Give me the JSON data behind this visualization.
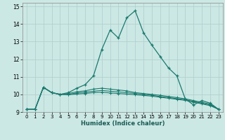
{
  "xlabel": "Humidex (Indice chaleur)",
  "ylabel": "",
  "background_color": "#cce8e4",
  "grid_color": "#b0cccc",
  "line_color": "#1a7a6e",
  "xlim": [
    -0.5,
    23.5
  ],
  "ylim": [
    9,
    15.2
  ],
  "xticks": [
    0,
    1,
    2,
    3,
    4,
    5,
    6,
    7,
    8,
    9,
    10,
    11,
    12,
    13,
    14,
    15,
    16,
    17,
    18,
    19,
    20,
    21,
    22,
    23
  ],
  "yticks": [
    9,
    10,
    11,
    12,
    13,
    14,
    15
  ],
  "curve1_x": [
    0,
    1,
    2,
    3,
    4,
    5,
    6,
    7,
    8,
    9,
    10,
    11,
    12,
    13,
    14,
    15,
    16,
    17,
    18,
    19,
    20,
    21,
    22,
    23
  ],
  "curve1_y": [
    9.15,
    9.15,
    10.4,
    10.1,
    10.0,
    10.1,
    10.35,
    10.55,
    11.05,
    12.55,
    13.65,
    13.2,
    14.35,
    14.75,
    13.5,
    12.8,
    12.15,
    11.5,
    11.05,
    9.75,
    9.4,
    9.65,
    9.5,
    9.15
  ],
  "curve2_x": [
    0,
    1,
    2,
    3,
    4,
    5,
    6,
    7,
    8,
    9,
    10,
    11,
    12,
    13,
    14,
    15,
    16,
    17,
    18,
    19,
    20,
    21,
    22,
    23
  ],
  "curve2_y": [
    9.15,
    9.15,
    10.4,
    10.1,
    10.0,
    10.05,
    10.15,
    10.2,
    10.3,
    10.35,
    10.3,
    10.25,
    10.2,
    10.1,
    10.05,
    10.0,
    9.95,
    9.88,
    9.82,
    9.75,
    9.65,
    9.55,
    9.45,
    9.15
  ],
  "curve3_x": [
    0,
    1,
    2,
    3,
    4,
    5,
    6,
    7,
    8,
    9,
    10,
    11,
    12,
    13,
    14,
    15,
    16,
    17,
    18,
    19,
    20,
    21,
    22,
    23
  ],
  "curve3_y": [
    9.15,
    9.15,
    10.4,
    10.1,
    10.0,
    10.0,
    10.08,
    10.12,
    10.18,
    10.22,
    10.18,
    10.14,
    10.1,
    10.05,
    10.0,
    9.95,
    9.88,
    9.82,
    9.76,
    9.7,
    9.6,
    9.5,
    9.4,
    9.15
  ],
  "curve4_x": [
    0,
    1,
    2,
    3,
    4,
    5,
    6,
    7,
    8,
    9,
    10,
    11,
    12,
    13,
    14,
    15,
    16,
    17,
    18,
    19,
    20,
    21,
    22,
    23
  ],
  "curve4_y": [
    9.15,
    9.15,
    10.4,
    10.1,
    10.0,
    9.98,
    10.02,
    10.05,
    10.1,
    10.12,
    10.08,
    10.05,
    10.02,
    9.98,
    9.94,
    9.9,
    9.84,
    9.78,
    9.72,
    9.66,
    9.56,
    9.46,
    9.36,
    9.15
  ]
}
